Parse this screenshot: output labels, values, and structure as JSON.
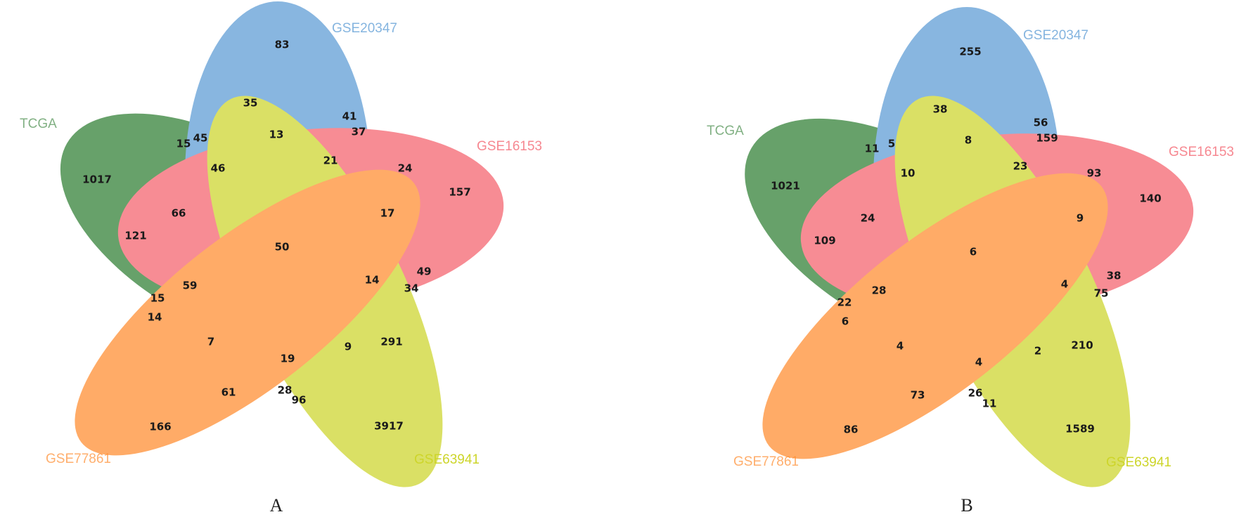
{
  "colors": {
    "TCGA": "#2e7d32",
    "GSE20347": "#5b9bd5",
    "GSE16153": "#f4606c",
    "GSE63941": "#cdd52a",
    "GSE77861": "#ff8c2e",
    "count_text": "#1a1a1a"
  },
  "panels": [
    {
      "label": "A",
      "sets": {
        "TCGA": "TCGA",
        "GSE20347": "GSE20347",
        "GSE16153": "GSE16153",
        "GSE63941": "GSE63941",
        "GSE77861": "GSE77861"
      },
      "counts": [
        "83",
        "35",
        "13",
        "41",
        "37",
        "45",
        "15",
        "1017",
        "46",
        "21",
        "24",
        "157",
        "66",
        "121",
        "50",
        "17",
        "49",
        "14",
        "34",
        "59",
        "15",
        "14",
        "7",
        "19",
        "9",
        "291",
        "61",
        "28",
        "96",
        "166",
        "3917"
      ]
    },
    {
      "label": "B",
      "sets": {
        "TCGA": "TCGA",
        "GSE20347": "GSE20347",
        "GSE16153": "GSE16153",
        "GSE63941": "GSE63941",
        "GSE77861": "GSE77861"
      },
      "counts": [
        "255",
        "38",
        "8",
        "56",
        "159",
        "11",
        "5",
        "1021",
        "10",
        "23",
        "93",
        "140",
        "24",
        "109",
        "6",
        "9",
        "38",
        "4",
        "75",
        "28",
        "22",
        "6",
        "4",
        "4",
        "2",
        "210",
        "73",
        "26",
        "11",
        "86",
        "1589"
      ]
    }
  ]
}
